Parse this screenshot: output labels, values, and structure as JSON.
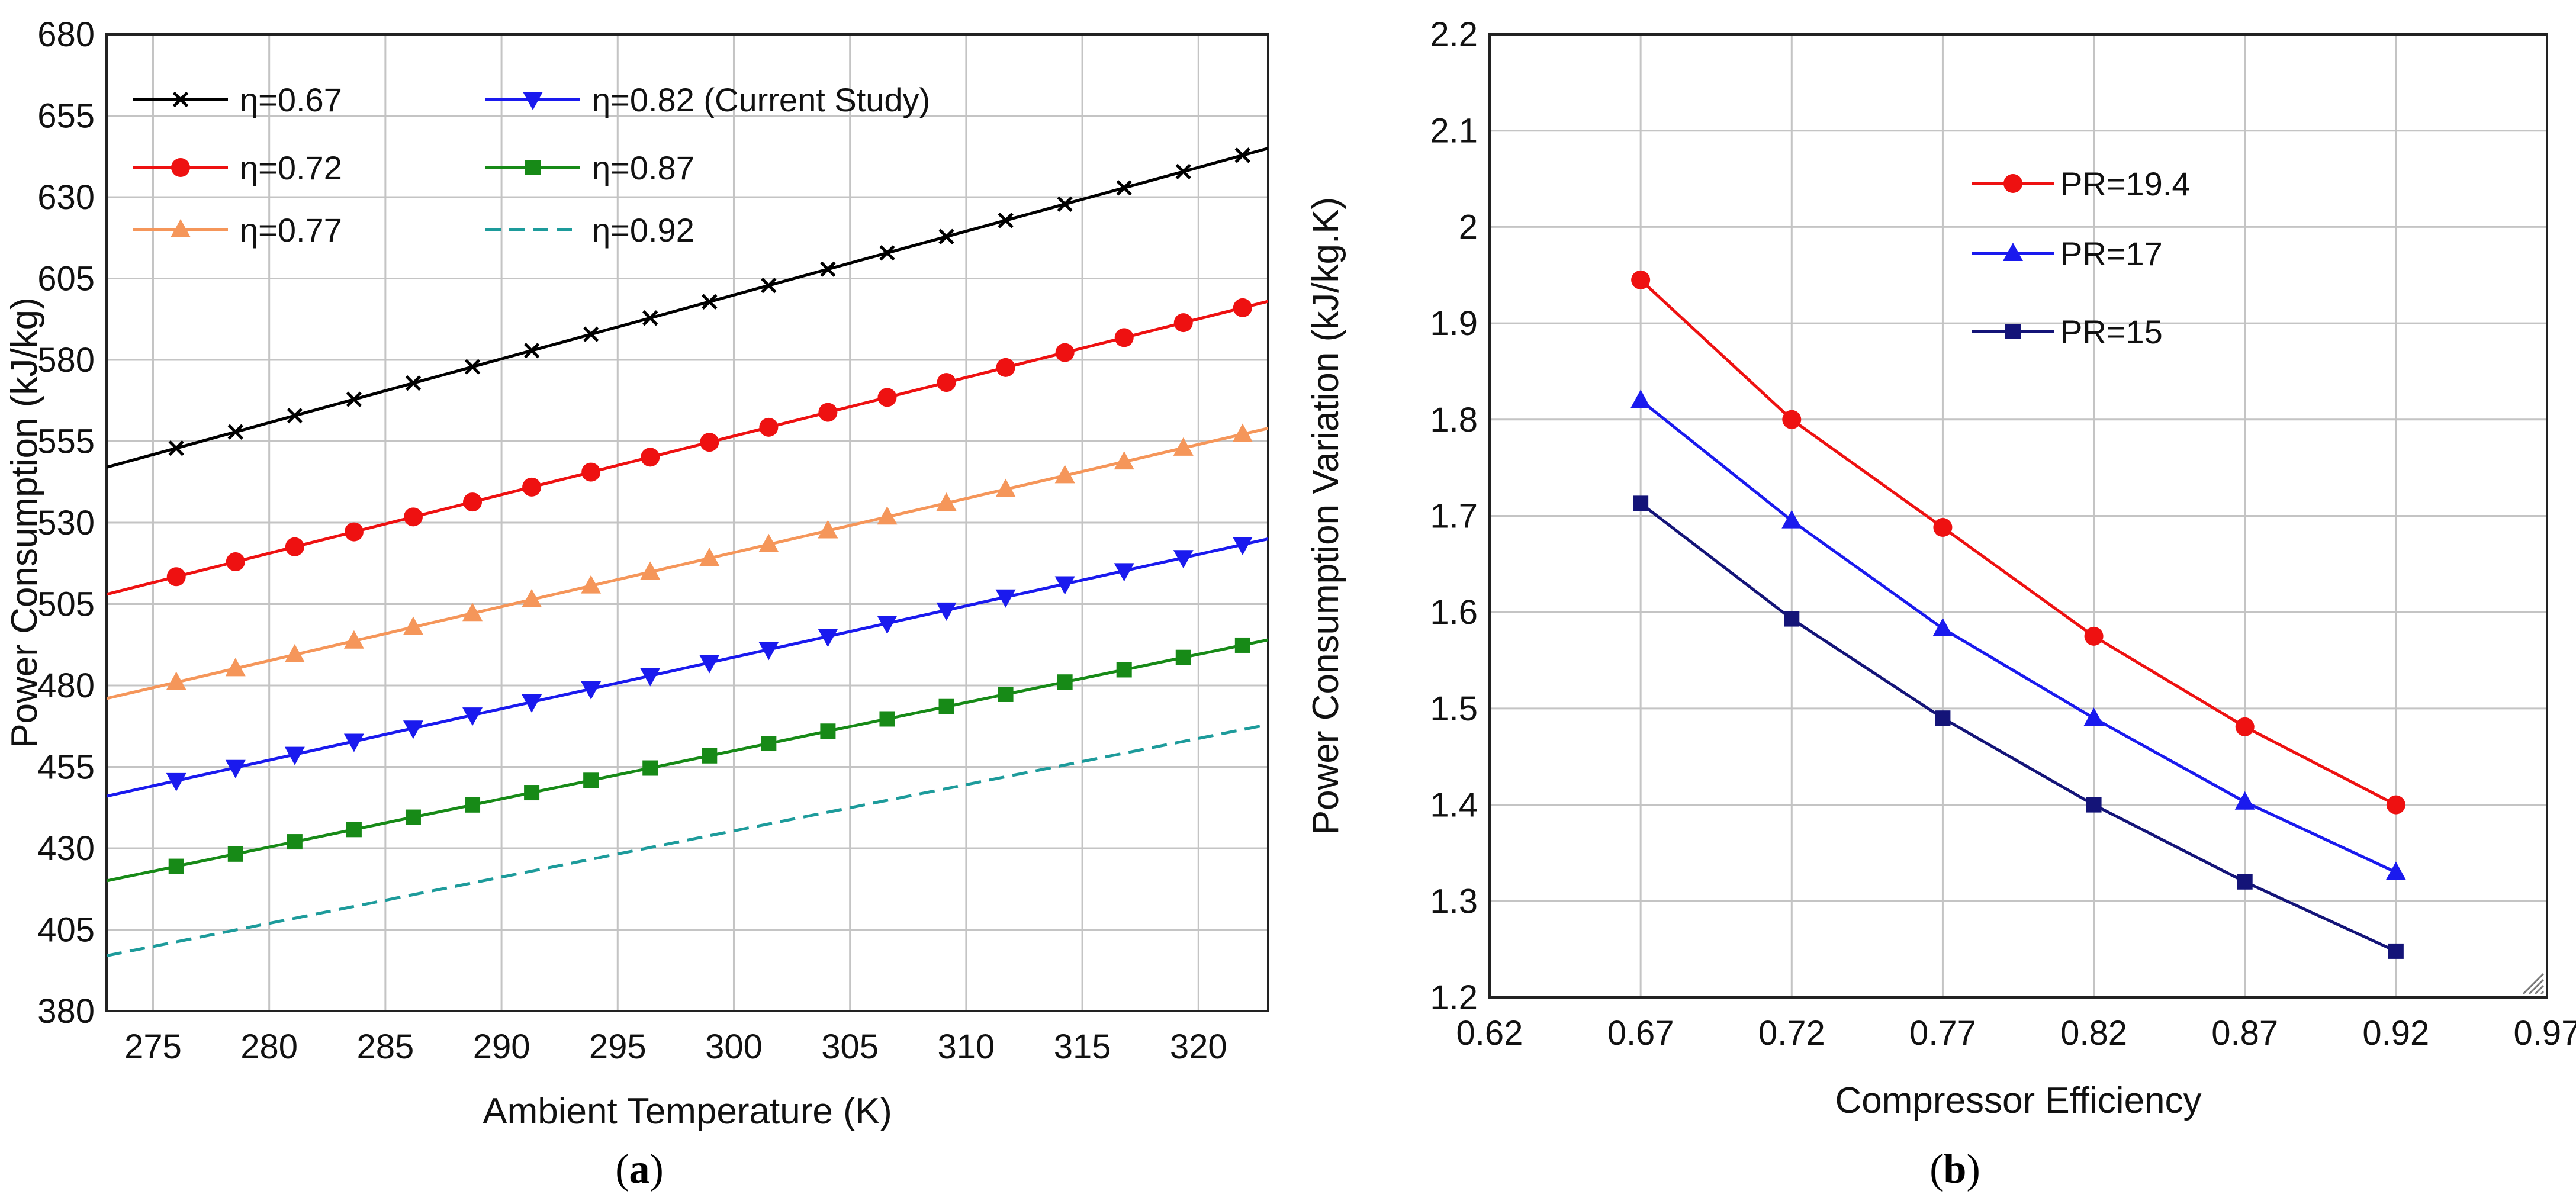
{
  "chart_data": [
    {
      "type": "line",
      "xlabel": "Ambient Temperature (K)",
      "ylabel": "Power Consumption (kJ/kg)",
      "xlim": [
        273,
        323
      ],
      "ylim": [
        380,
        680
      ],
      "xticks": [
        275,
        280,
        285,
        290,
        295,
        300,
        305,
        310,
        315,
        320
      ],
      "yticks": [
        380,
        405,
        430,
        455,
        480,
        505,
        530,
        555,
        580,
        605,
        630,
        655,
        680
      ],
      "grid": true,
      "legend_position": "top-left",
      "caption": "(a)",
      "caption_letter": "a",
      "series": [
        {
          "name": "η=0.67",
          "color": "#000000",
          "marker": "x",
          "x": [
            273,
            323
          ],
          "y": [
            547,
            645
          ]
        },
        {
          "name": "η=0.72",
          "color": "#ee1111",
          "marker": "circle",
          "x": [
            273,
            323
          ],
          "y": [
            508,
            598
          ]
        },
        {
          "name": "η=0.77",
          "color": "#f5965a",
          "marker": "triangle-up",
          "x": [
            273,
            323
          ],
          "y": [
            476,
            559
          ]
        },
        {
          "name": "η=0.82 (Current Study)",
          "color": "#1a1aee",
          "marker": "triangle-down",
          "x": [
            273,
            323
          ],
          "y": [
            446,
            525
          ]
        },
        {
          "name": "η=0.87",
          "color": "#178a17",
          "marker": "square",
          "x": [
            273,
            323
          ],
          "y": [
            420,
            494
          ]
        },
        {
          "name": "η=0.92",
          "color": "#1d9b9b",
          "marker": "dashed",
          "x": [
            273,
            323
          ],
          "y": [
            397,
            468
          ]
        }
      ]
    },
    {
      "type": "line",
      "xlabel": "Compressor Efficiency",
      "ylabel": "Power Consumption Variation (kJ/kg.K)",
      "xlim": [
        0.62,
        0.97
      ],
      "ylim": [
        1.2,
        2.2
      ],
      "xticks": [
        0.62,
        0.67,
        0.72,
        0.77,
        0.82,
        0.87,
        0.92,
        0.97
      ],
      "yticks": [
        1.2,
        1.3,
        1.4,
        1.5,
        1.6,
        1.7,
        1.8,
        1.9,
        2,
        2.1,
        2.2
      ],
      "grid": true,
      "legend_position": "top-center",
      "caption": "(b)",
      "caption_letter": "b",
      "categories": [
        0.67,
        0.72,
        0.77,
        0.82,
        0.87,
        0.92
      ],
      "series": [
        {
          "name": "PR=19.4",
          "color": "#ee1111",
          "marker": "circle",
          "values": [
            1.945,
            1.8,
            1.688,
            1.575,
            1.481,
            1.4
          ]
        },
        {
          "name": "PR=17",
          "color": "#1a1aee",
          "marker": "triangle-up",
          "values": [
            1.82,
            1.695,
            1.583,
            1.49,
            1.403,
            1.33
          ]
        },
        {
          "name": "PR=15",
          "color": "#141478",
          "marker": "square",
          "values": [
            1.713,
            1.593,
            1.49,
            1.4,
            1.32,
            1.248
          ]
        }
      ]
    }
  ]
}
